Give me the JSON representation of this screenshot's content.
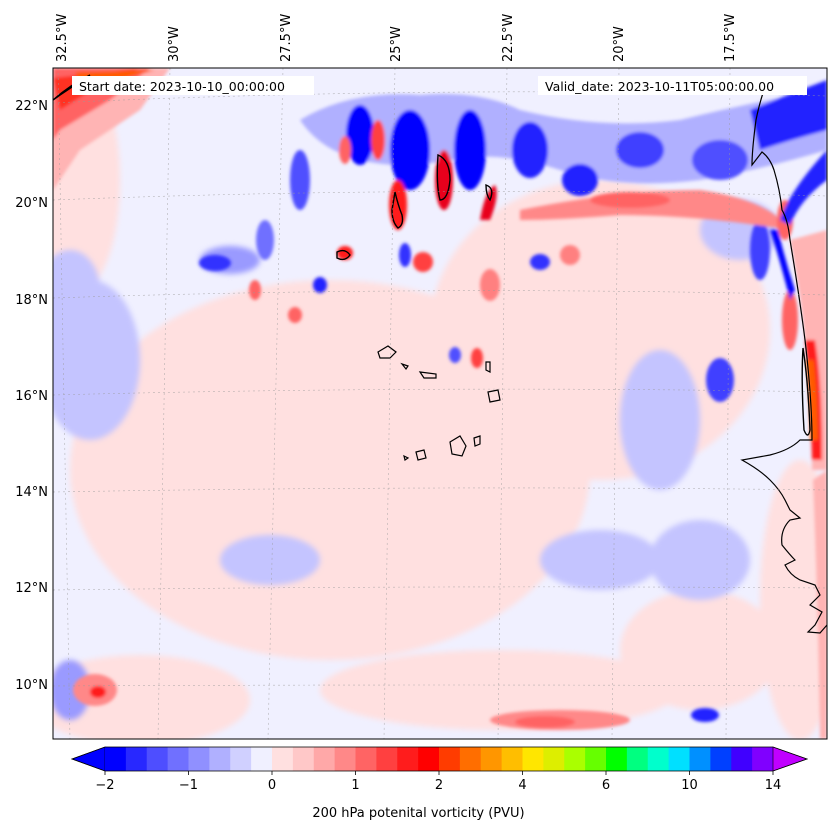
{
  "map": {
    "start_date": "Start date: 2023-10-10_00:00:00",
    "valid_date": "Valid_date: 2023-10-11T05:00:00.00",
    "lon_labels": [
      "32.5°W",
      "30°W",
      "27.5°W",
      "25°W",
      "22.5°W",
      "20°W",
      "17.5°W"
    ],
    "lat_labels": [
      "22°N",
      "20°N",
      "18°N",
      "16°N",
      "14°N",
      "12°N",
      "10°N"
    ],
    "field_colors": {
      "background": "#f0f0ff",
      "pale_red": "#ffe0e0",
      "light_red": "#ffb4b4",
      "red": "#ff4040",
      "deep_red": "#e8001a",
      "orange": "#ff5a00",
      "blue": "#0000ff",
      "light_blue": "#c4c4ff",
      "mid_blue": "#7070ff"
    }
  },
  "colorbar": {
    "title": "200 hPa potenital vorticity (PVU)",
    "tick_labels": [
      "−2",
      "−1",
      "0",
      "1",
      "2",
      "4",
      "6",
      "10",
      "14"
    ],
    "colors": [
      "#0000ff",
      "#2828ff",
      "#4e4eff",
      "#7070ff",
      "#9090ff",
      "#b0b0ff",
      "#d0d0ff",
      "#f0f0ff",
      "#ffe0e0",
      "#ffc8c8",
      "#ffa8a8",
      "#ff8888",
      "#ff6464",
      "#ff4040",
      "#ff1c1c",
      "#ff0000",
      "#ff3c00",
      "#ff6e00",
      "#ff9600",
      "#ffbe00",
      "#ffe600",
      "#ddee00",
      "#aaff00",
      "#66ff00",
      "#00ff00",
      "#00ff80",
      "#00ffcc",
      "#00e0ff",
      "#0090ff",
      "#0040ff",
      "#4000ff",
      "#8000ff"
    ],
    "under_color": "#0000ff",
    "over_color": "#c000ff"
  }
}
